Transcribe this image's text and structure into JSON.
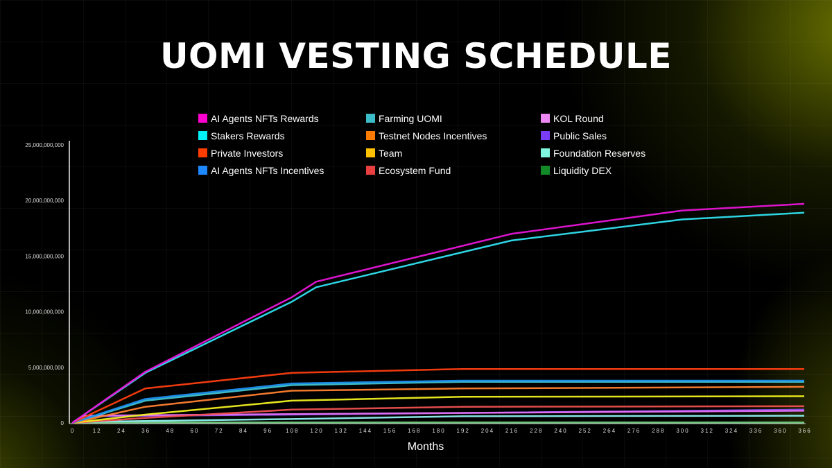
{
  "title": "UOMI VESTING SCHEDULE",
  "chart_data": {
    "type": "line",
    "title": "UOMI VESTING SCHEDULE",
    "xlabel": "Months",
    "ylabel": "",
    "ylim": [
      0,
      25000000000
    ],
    "yticks": [
      "0",
      "5,000,000,000",
      "10,000,000,000",
      "15,000,000,000",
      "20,000,000,000",
      "25,000,000,000"
    ],
    "xticks": [
      "0",
      "12",
      "24",
      "36",
      "48",
      "60",
      "72",
      "84",
      "96",
      "108",
      "120",
      "132",
      "144",
      "156",
      "168",
      "180",
      "192",
      "204",
      "216",
      "228",
      "240",
      "252",
      "264",
      "276",
      "288",
      "300",
      "312",
      "324",
      "336",
      "360",
      "366"
    ],
    "legend_position": "top",
    "grid": false,
    "series": [
      {
        "name": "AI Agents NFTs Rewards",
        "color": "#ff00d0",
        "line_color": "#e815d8",
        "points": [
          [
            0,
            0
          ],
          [
            36,
            4600000000
          ],
          [
            108,
            11300000000
          ],
          [
            120,
            12700000000
          ],
          [
            216,
            17000000000
          ],
          [
            300,
            19100000000
          ],
          [
            366,
            19700000000
          ]
        ]
      },
      {
        "name": "Stakers Rewards",
        "color": "#00f0f8",
        "line_color": "#30e0f0",
        "points": [
          [
            0,
            0
          ],
          [
            36,
            4500000000
          ],
          [
            108,
            10900000000
          ],
          [
            120,
            12200000000
          ],
          [
            216,
            16400000000
          ],
          [
            300,
            18300000000
          ],
          [
            366,
            18900000000
          ]
        ]
      },
      {
        "name": "Private Investors",
        "color": "#ff3d00",
        "line_color": "#ff3d10",
        "points": [
          [
            0,
            0
          ],
          [
            36,
            3100000000
          ],
          [
            108,
            4500000000
          ],
          [
            192,
            4850000000
          ],
          [
            366,
            4850000000
          ]
        ]
      },
      {
        "name": "AI Agents NFTs Incentives",
        "color": "#1e88ff",
        "line_color": "#1e90f0",
        "points": [
          [
            0,
            0
          ],
          [
            36,
            2150000000
          ],
          [
            108,
            3550000000
          ],
          [
            192,
            3800000000
          ],
          [
            366,
            3800000000
          ]
        ]
      },
      {
        "name": "Farming UOMI",
        "color": "#3cbcc8",
        "line_color": "#40c4d0",
        "points": [
          [
            0,
            0
          ],
          [
            36,
            2000000000
          ],
          [
            108,
            3400000000
          ],
          [
            192,
            3700000000
          ],
          [
            366,
            3700000000
          ]
        ]
      },
      {
        "name": "Testnet Nodes Incentives",
        "color": "#ff7a00",
        "line_color": "#ff8030",
        "points": [
          [
            0,
            0
          ],
          [
            36,
            1450000000
          ],
          [
            108,
            2900000000
          ],
          [
            192,
            3100000000
          ],
          [
            366,
            3250000000
          ]
        ]
      },
      {
        "name": "Team",
        "color": "#ffc000",
        "line_color": "#f0f020",
        "points": [
          [
            0,
            0
          ],
          [
            36,
            750000000
          ],
          [
            108,
            2000000000
          ],
          [
            192,
            2350000000
          ],
          [
            366,
            2400000000
          ]
        ]
      },
      {
        "name": "Ecosystem Fund",
        "color": "#e84040",
        "line_color": "#f05050",
        "points": [
          [
            0,
            0
          ],
          [
            36,
            450000000
          ],
          [
            108,
            1200000000
          ],
          [
            192,
            1450000000
          ],
          [
            366,
            1500000000
          ]
        ]
      },
      {
        "name": "KOL Round",
        "color": "#ee88f5",
        "line_color": "#e070f0",
        "points": [
          [
            0,
            0
          ],
          [
            6,
            650000000
          ],
          [
            108,
            800000000
          ],
          [
            366,
            1100000000
          ]
        ]
      },
      {
        "name": "Public Sales",
        "color": "#7b3cf5",
        "line_color": "#9050f8",
        "points": [
          [
            0,
            0
          ],
          [
            6,
            600000000
          ],
          [
            108,
            750000000
          ],
          [
            366,
            1200000000
          ]
        ]
      },
      {
        "name": "Foundation Reserves",
        "color": "#80f8e0",
        "line_color": "#90f0f0",
        "points": [
          [
            0,
            0
          ],
          [
            6,
            100000000
          ],
          [
            108,
            350000000
          ],
          [
            192,
            600000000
          ],
          [
            366,
            650000000
          ]
        ]
      },
      {
        "name": "Liquidity DEX",
        "color": "#138a28",
        "line_color": "#70d080",
        "points": [
          [
            0,
            0
          ],
          [
            6,
            50000000
          ],
          [
            366,
            50000000
          ]
        ]
      }
    ]
  }
}
